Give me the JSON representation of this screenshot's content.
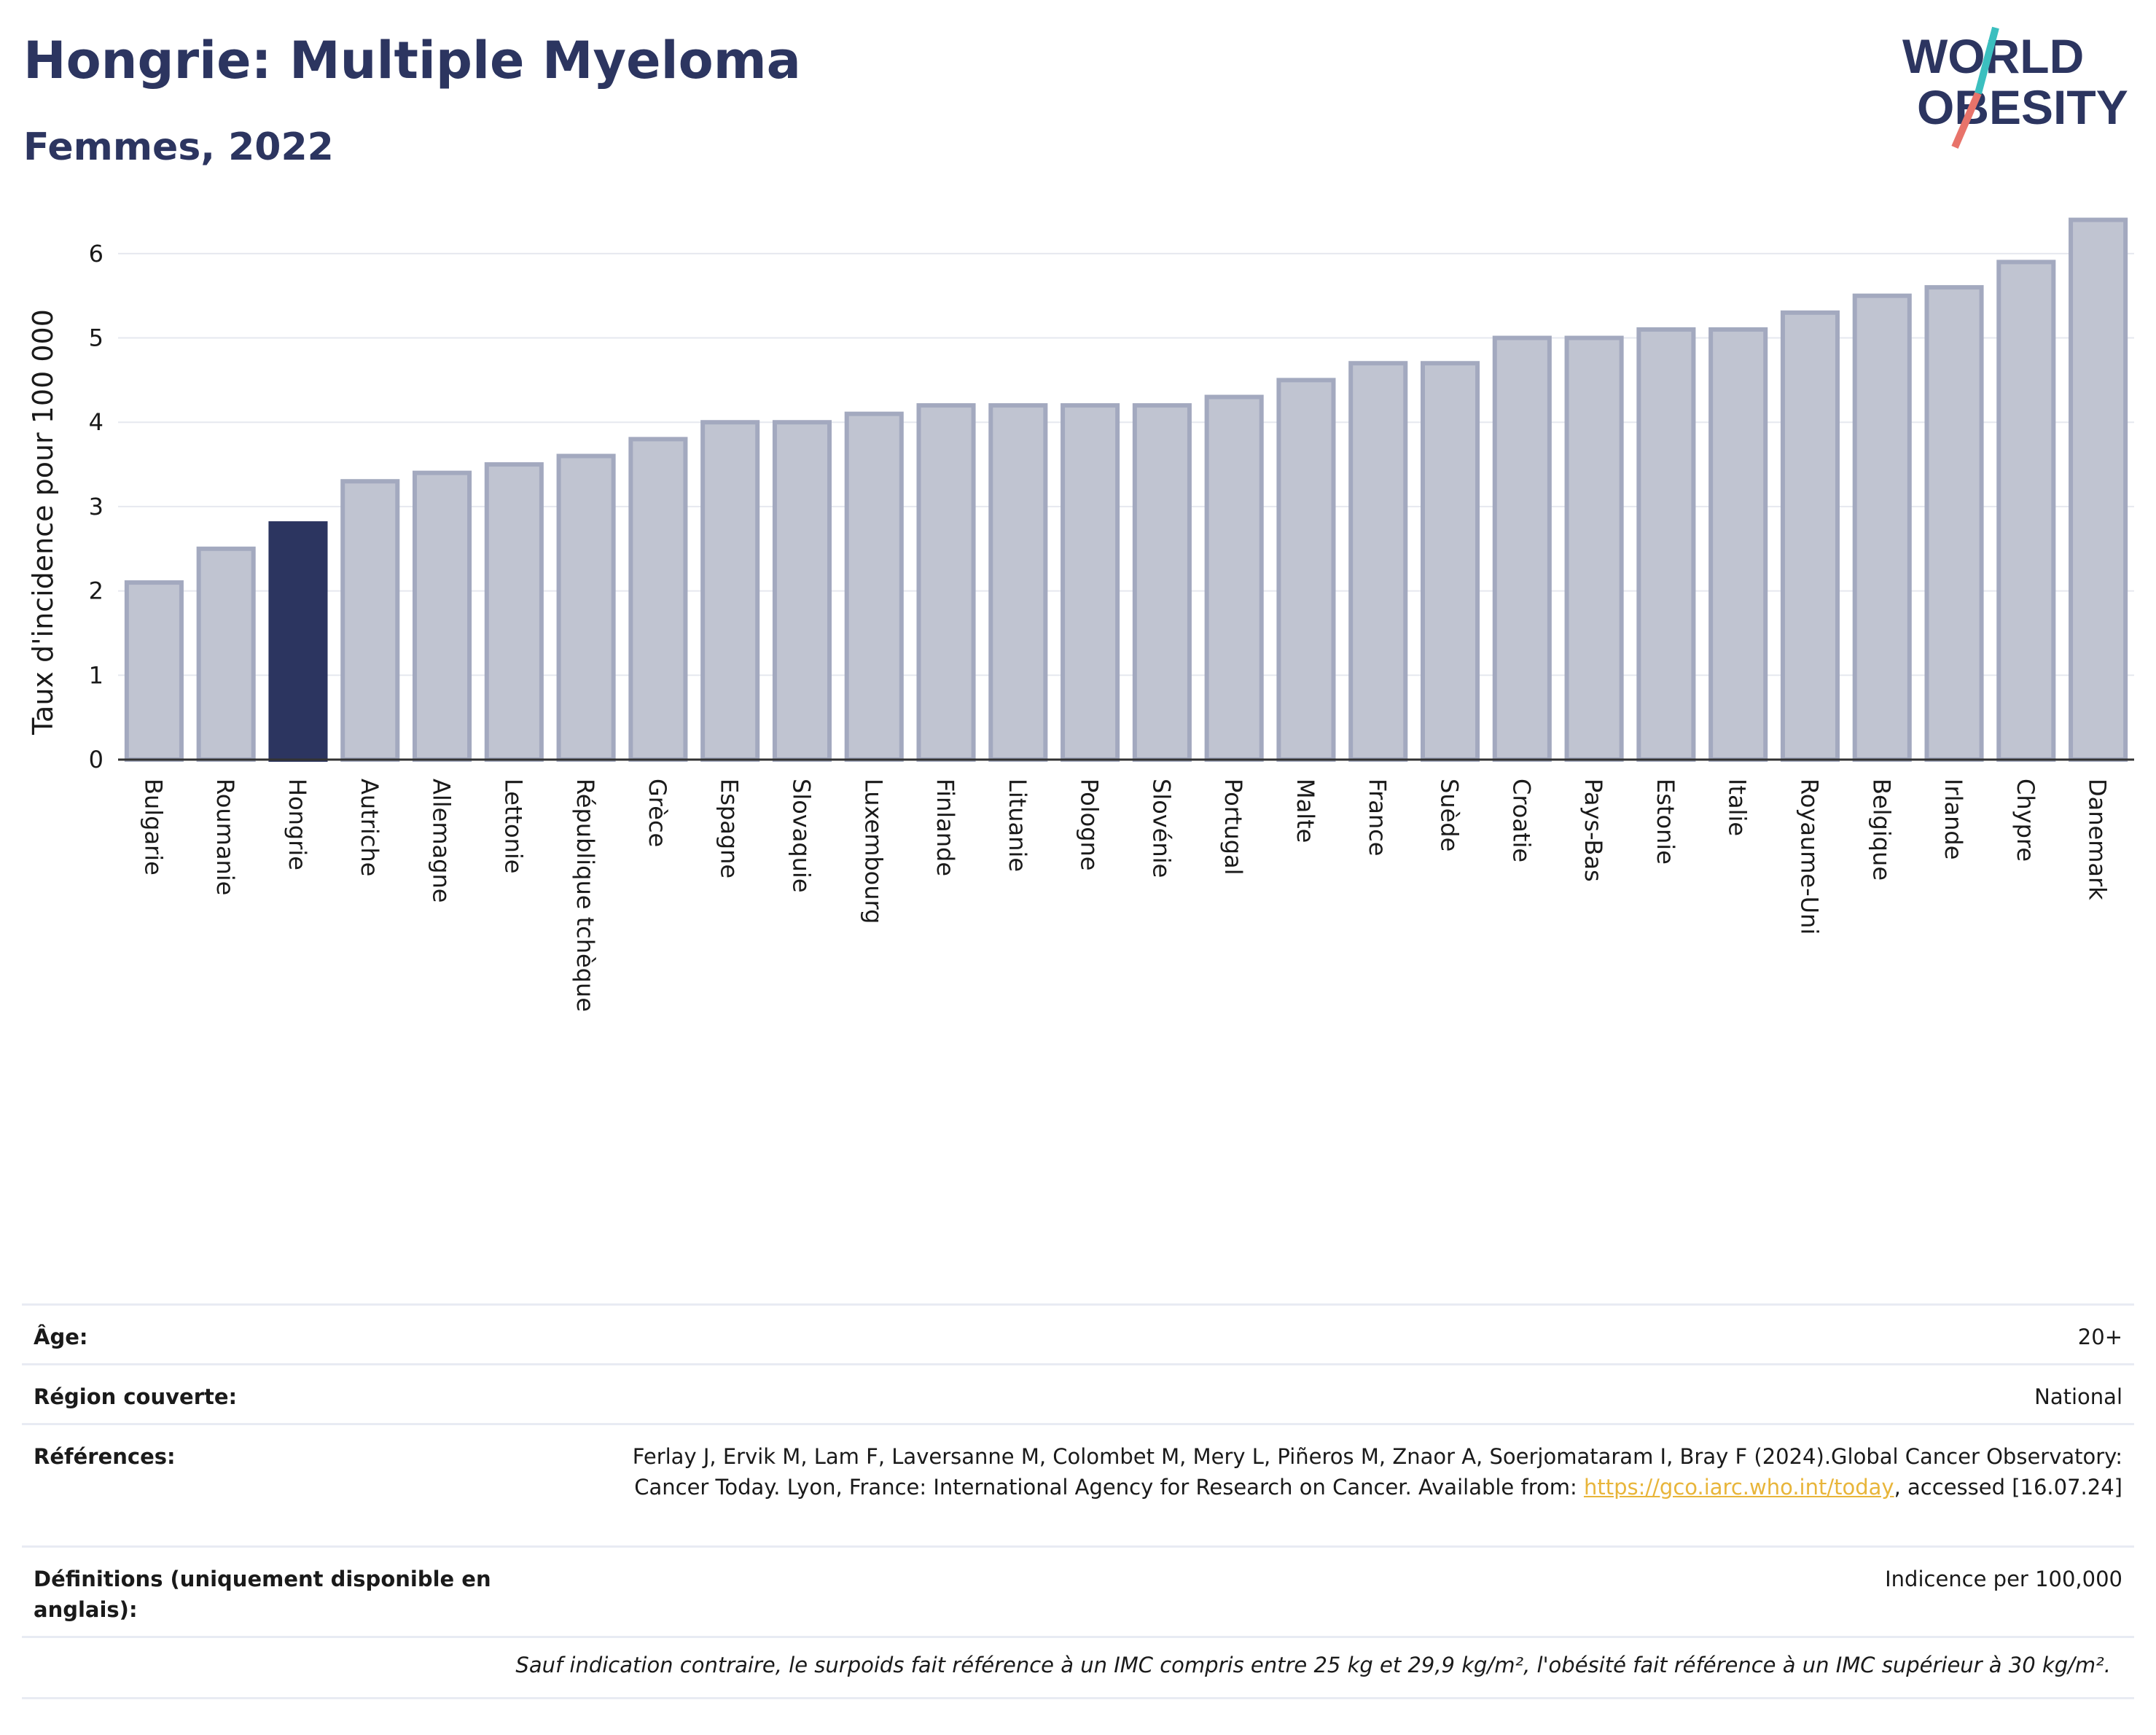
{
  "header": {
    "title": "Hongrie: Multiple Myeloma",
    "subtitle": "Femmes, 2022",
    "logo_line1": "WORLD",
    "logo_line2": "OBESITY"
  },
  "colors": {
    "title": "#2c3560",
    "bar": "#c0c4d1",
    "bar_stroke": "#a3a9bf",
    "highlight": "#2c3560",
    "grid": "#e6e8ef",
    "link": "#e8b53a",
    "logo_teal": "#3bbfbf",
    "logo_coral": "#e8736a"
  },
  "chart_data": {
    "type": "bar",
    "ylabel": "Taux d'incidence pour 100 000",
    "ylim": [
      0,
      6.5
    ],
    "yticks": [
      "0",
      "1",
      "2",
      "3",
      "4",
      "5",
      "6"
    ],
    "grid": true,
    "highlight_category": "Hongrie",
    "categories": [
      "Bulgarie",
      "Roumanie",
      "Hongrie",
      "Autriche",
      "Allemagne",
      "Lettonie",
      "République tchèque",
      "Grèce",
      "Espagne",
      "Slovaquie",
      "Luxembourg",
      "Finlande",
      "Lituanie",
      "Pologne",
      "Slovénie",
      "Portugal",
      "Malte",
      "France",
      "Suède",
      "Croatie",
      "Pays-Bas",
      "Estonie",
      "Italie",
      "Royaume-Uni",
      "Belgique",
      "Irlande",
      "Chypre",
      "Danemark"
    ],
    "values": [
      2.1,
      2.5,
      2.8,
      3.3,
      3.4,
      3.5,
      3.6,
      3.8,
      4.0,
      4.0,
      4.1,
      4.2,
      4.2,
      4.2,
      4.2,
      4.3,
      4.5,
      4.7,
      4.7,
      5.0,
      5.0,
      5.1,
      5.1,
      5.3,
      5.5,
      5.6,
      5.9,
      6.4
    ]
  },
  "meta": {
    "rows": [
      {
        "key": "Âge:",
        "value": "20+"
      },
      {
        "key": "Région couverte:",
        "value": "National"
      },
      {
        "key": "Références:",
        "value_before": "Ferlay J, Ervik M, Lam F, Laversanne M, Colombet M, Mery L, Piñeros M, Znaor A, Soerjomataram I, Bray F (2024).Global Cancer Observatory: Cancer Today. Lyon, France: International Agency for Research on Cancer. Available from: ",
        "link": "https://gco.iarc.who.int/today",
        "value_after": ", accessed [16.07.24]"
      },
      {
        "key": "Définitions (uniquement disponible en anglais):",
        "value": "Indicence per 100,000"
      }
    ],
    "note": "Sauf indication contraire, le surpoids fait référence à un IMC compris entre 25 kg et 29,9 kg/m², l'obésité fait référence à un IMC supérieur à 30 kg/m²."
  }
}
